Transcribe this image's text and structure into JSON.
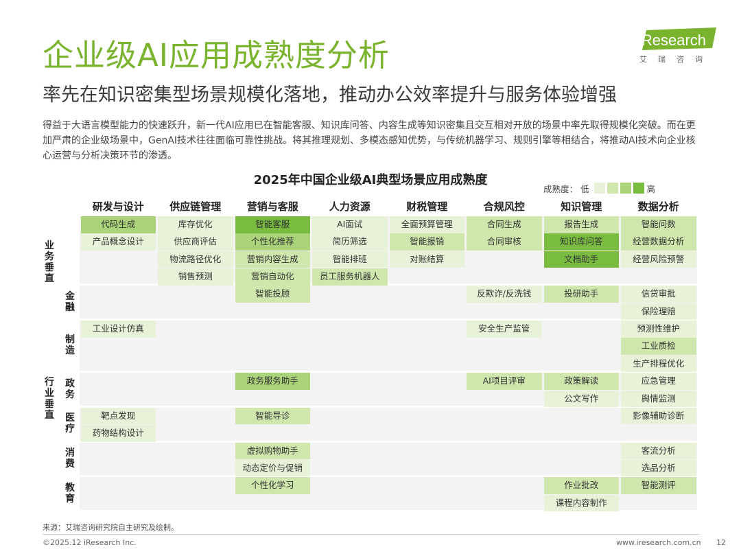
{
  "header": {
    "title": "企业级AI应用成熟度分析",
    "subtitle": "率先在知识密集型场景规模化落地，推动办公效率提升与服务体验增强",
    "intro": "得益于大语言模型能力的快速跃升，新一代AI应用已在智能客服、知识库问答、内容生成等知识密集且交互相对开放的场景中率先取得规模化突破。而在更加严肃的企业级场景中，GenAI技术往往面临可靠性挑战。将其推理规划、多模态感知优势，与传统机器学习、规则引擎等相结合，将推动AI技术向企业核心运营与分析决策环节的渗透。"
  },
  "logo": {
    "brand": "iResearch",
    "sub": "艾瑞咨询"
  },
  "colors": {
    "accent": "#7ab42e",
    "levels": [
      "#f3f3f3",
      "#e7f2d8",
      "#cfe6ad",
      "#abd47a",
      "#79bc40"
    ]
  },
  "chart_data": {
    "type": "table",
    "title": "2025年中国企业级AI典型场景应用成熟度",
    "legend": {
      "title": "成熟度：",
      "low": "低",
      "high": "高",
      "levels": [
        1,
        2,
        3,
        4
      ]
    },
    "columns": [
      "研发与设计",
      "供应链管理",
      "营销与客服",
      "人力资源",
      "财税管理",
      "合规风控",
      "知识管理",
      "数据分析"
    ],
    "group_labels": [
      {
        "text": "业务垂直"
      },
      {
        "text": "行业垂直"
      }
    ],
    "industry_labels": [
      "金融",
      "制造",
      "政务",
      "医疗",
      "消费",
      "教育"
    ],
    "cells": [
      {
        "row": 0,
        "col": 0,
        "text": "代码生成",
        "level": 3
      },
      {
        "row": 1,
        "col": 0,
        "text": "产品概念设计",
        "level": 1
      },
      {
        "row": 6,
        "col": 0,
        "text": "工业设计仿真",
        "level": 1
      },
      {
        "row": 11,
        "col": 0,
        "text": "靶点发现",
        "level": 1
      },
      {
        "row": 12,
        "col": 0,
        "text": "药物结构设计",
        "level": 1
      },
      {
        "row": 0,
        "col": 1,
        "text": "库存优化",
        "level": 1
      },
      {
        "row": 1,
        "col": 1,
        "text": "供应商评估",
        "level": 1
      },
      {
        "row": 2,
        "col": 1,
        "text": "物流路径优化",
        "level": 1
      },
      {
        "row": 3,
        "col": 1,
        "text": "销售预测",
        "level": 1
      },
      {
        "row": 0,
        "col": 2,
        "text": "智能客服",
        "level": 4
      },
      {
        "row": 1,
        "col": 2,
        "text": "个性化推荐",
        "level": 3
      },
      {
        "row": 2,
        "col": 2,
        "text": "营销内容生成",
        "level": 2
      },
      {
        "row": 3,
        "col": 2,
        "text": "营销自动化",
        "level": 2
      },
      {
        "row": 4,
        "col": 2,
        "text": "智能投顾",
        "level": 2
      },
      {
        "row": 9,
        "col": 2,
        "text": "政务服务助手",
        "level": 3
      },
      {
        "row": 11,
        "col": 2,
        "text": "智能导诊",
        "level": 2
      },
      {
        "row": 13,
        "col": 2,
        "text": "虚拟购物助手",
        "level": 2
      },
      {
        "row": 14,
        "col": 2,
        "text": "动态定价与促销",
        "level": 1
      },
      {
        "row": 15,
        "col": 2,
        "text": "个性化学习",
        "level": 2
      },
      {
        "row": 0,
        "col": 3,
        "text": "AI面试",
        "level": 1
      },
      {
        "row": 1,
        "col": 3,
        "text": "简历筛选",
        "level": 1
      },
      {
        "row": 2,
        "col": 3,
        "text": "智能排班",
        "level": 1
      },
      {
        "row": 3,
        "col": 3,
        "text": "员工服务机器人",
        "level": 2
      },
      {
        "row": 0,
        "col": 4,
        "text": "全面预算管理",
        "level": 1
      },
      {
        "row": 1,
        "col": 4,
        "text": "智能报销",
        "level": 2
      },
      {
        "row": 2,
        "col": 4,
        "text": "对账结算",
        "level": 1
      },
      {
        "row": 0,
        "col": 5,
        "text": "合同生成",
        "level": 2
      },
      {
        "row": 1,
        "col": 5,
        "text": "合同审核",
        "level": 2
      },
      {
        "row": 4,
        "col": 5,
        "text": "反欺诈/反洗钱",
        "level": 1
      },
      {
        "row": 6,
        "col": 5,
        "text": "安全生产监管",
        "level": 1
      },
      {
        "row": 9,
        "col": 5,
        "text": "AI项目评审",
        "level": 2
      },
      {
        "row": 0,
        "col": 6,
        "text": "报告生成",
        "level": 2
      },
      {
        "row": 1,
        "col": 6,
        "text": "知识库问答",
        "level": 4
      },
      {
        "row": 2,
        "col": 6,
        "text": "文档助手",
        "level": 4
      },
      {
        "row": 4,
        "col": 6,
        "text": "投研助手",
        "level": 2
      },
      {
        "row": 9,
        "col": 6,
        "text": "政策解读",
        "level": 2
      },
      {
        "row": 10,
        "col": 6,
        "text": "公文写作",
        "level": 1
      },
      {
        "row": 15,
        "col": 6,
        "text": "作业批改",
        "level": 2
      },
      {
        "row": 16,
        "col": 6,
        "text": "课程内容制作",
        "level": 1
      },
      {
        "row": 0,
        "col": 7,
        "text": "智能问数",
        "level": 2
      },
      {
        "row": 1,
        "col": 7,
        "text": "经营数据分析",
        "level": 2
      },
      {
        "row": 2,
        "col": 7,
        "text": "经营风险预警",
        "level": 1
      },
      {
        "row": 4,
        "col": 7,
        "text": "信贷审批",
        "level": 1
      },
      {
        "row": 5,
        "col": 7,
        "text": "保险理赔",
        "level": 1
      },
      {
        "row": 6,
        "col": 7,
        "text": "预测性维护",
        "level": 1
      },
      {
        "row": 7,
        "col": 7,
        "text": "工业质检",
        "level": 2
      },
      {
        "row": 8,
        "col": 7,
        "text": "生产排程优化",
        "level": 1
      },
      {
        "row": 9,
        "col": 7,
        "text": "应急管理",
        "level": 1
      },
      {
        "row": 10,
        "col": 7,
        "text": "舆情监测",
        "level": 1
      },
      {
        "row": 11,
        "col": 7,
        "text": "影像辅助诊断",
        "level": 1
      },
      {
        "row": 13,
        "col": 7,
        "text": "客流分析",
        "level": 1
      },
      {
        "row": 14,
        "col": 7,
        "text": "选品分析",
        "level": 1
      },
      {
        "row": 15,
        "col": 7,
        "text": "智能测评",
        "level": 2
      }
    ]
  },
  "footer": {
    "source": "来源：艾瑞咨询研究院自主研究及绘制。",
    "copyright": "©2025.12 iResearch Inc.",
    "website": "www.iresearch.com.cn",
    "page": "12"
  }
}
